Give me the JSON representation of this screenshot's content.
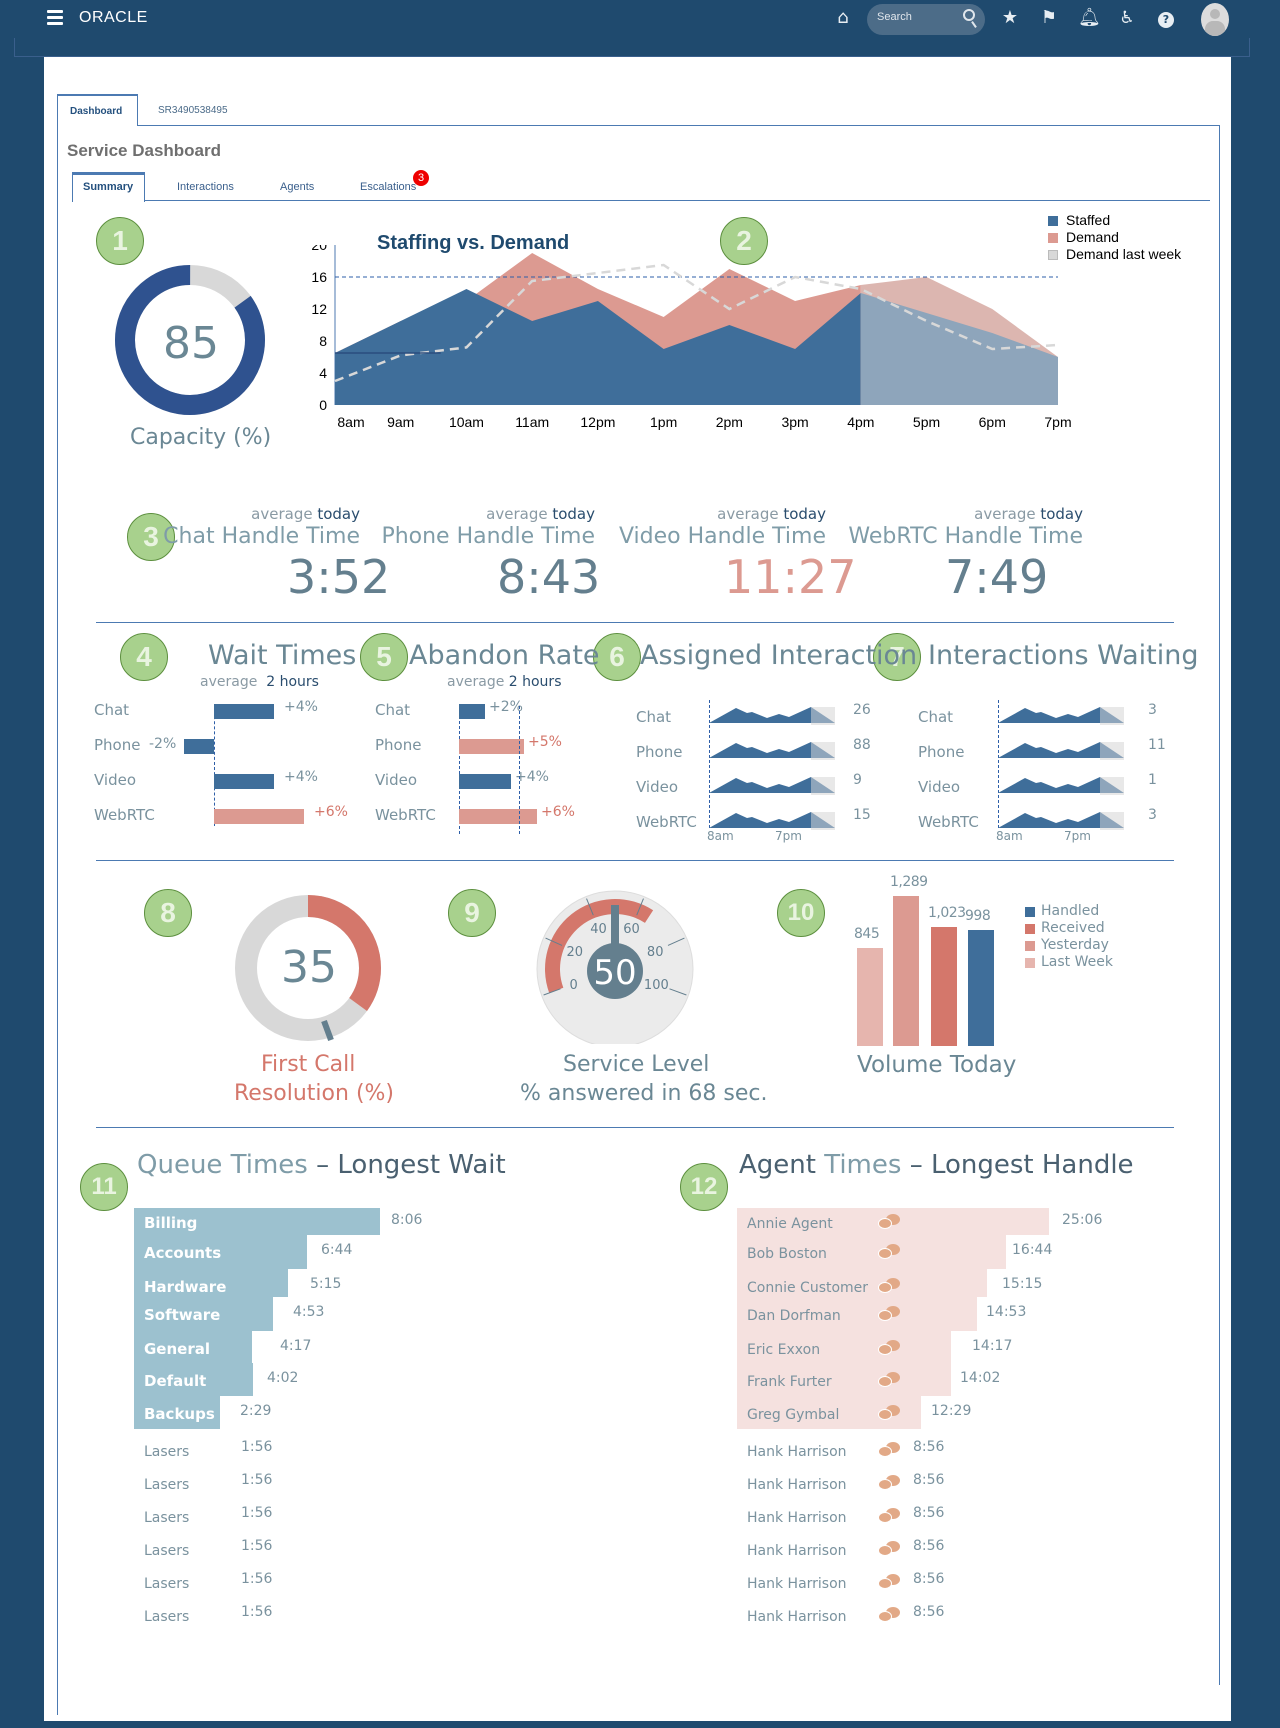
{
  "app": {
    "brand": "ORACLE",
    "search_placeholder": "Search"
  },
  "header_icons": [
    "menu-icon",
    "home-icon",
    "search-icon",
    "star-icon",
    "flag-icon",
    "bell-icon",
    "accessibility-icon",
    "help-icon",
    "avatar"
  ],
  "tabs": [
    {
      "label": "Dashboard",
      "active": true
    },
    {
      "label": "SR3490538495",
      "active": false
    }
  ],
  "page_title": "Service Dashboard",
  "subtabs": [
    {
      "label": "Summary",
      "active": true
    },
    {
      "label": "Interactions"
    },
    {
      "label": "Agents"
    },
    {
      "label": "Escalations",
      "badge": "3"
    }
  ],
  "markers": [
    "1",
    "2",
    "3",
    "4",
    "5",
    "6",
    "7",
    "8",
    "9",
    "10",
    "11",
    "12"
  ],
  "capacity": {
    "value": "85",
    "percent": 85,
    "label": "Capacity (%)"
  },
  "staffing_chart": {
    "title": "Staffing vs. Demand",
    "legend": [
      "Staffed",
      "Demand",
      "Demand last week"
    ],
    "y_ticks": [
      "20",
      "16",
      "12",
      "8",
      "4",
      "0"
    ],
    "x_ticks": [
      "8am",
      "9am",
      "10am",
      "11am",
      "12pm",
      "1pm",
      "2pm",
      "3pm",
      "4pm",
      "5pm",
      "6pm",
      "7pm"
    ]
  },
  "chart_data": {
    "type": "area",
    "title": "Staffing vs. Demand",
    "xlabel": "",
    "ylabel": "",
    "ylim": [
      0,
      20
    ],
    "x": [
      "8am",
      "9am",
      "10am",
      "11am",
      "12pm",
      "1pm",
      "2pm",
      "3pm",
      "4pm",
      "5pm",
      "6pm",
      "7pm"
    ],
    "threshold": 16,
    "forecast_from": "4pm",
    "series": [
      {
        "name": "Staffed",
        "values": [
          6.5,
          10.5,
          14.5,
          10.5,
          13,
          7,
          10,
          7,
          14,
          11.5,
          9,
          6
        ],
        "color": "#3f6e9a"
      },
      {
        "name": "Demand",
        "values": [
          6.5,
          10.5,
          13,
          19,
          14.5,
          11,
          17,
          13,
          15,
          16,
          12,
          6
        ],
        "color": "#dc9a91"
      },
      {
        "name": "Demand last week",
        "values": [
          3,
          6.2,
          7.2,
          15.5,
          16.5,
          17.5,
          12,
          16,
          14.5,
          10.5,
          7,
          7.5
        ],
        "color": "#d8d8d8"
      }
    ]
  },
  "handle_times": [
    {
      "caption": "average",
      "period": "today",
      "label": "Chat Handle Time",
      "value": "3:52",
      "alert": false
    },
    {
      "caption": "average",
      "period": "today",
      "label": "Phone Handle Time",
      "value": "8:43",
      "alert": false
    },
    {
      "caption": "average",
      "period": "today",
      "label": "Video Handle Time",
      "value": "11:27",
      "alert": true
    },
    {
      "caption": "average",
      "period": "today",
      "label": "WebRTC Handle Time",
      "value": "7:49",
      "alert": false
    }
  ],
  "wait_times": {
    "title": "Wait Times",
    "caption": "average",
    "period": "2 hours",
    "rows": [
      {
        "label": "Chat",
        "change": "+4%",
        "value": 4
      },
      {
        "label": "Phone",
        "change": "-2%",
        "value": -2
      },
      {
        "label": "Video",
        "change": "+4%",
        "value": 4
      },
      {
        "label": "WebRTC",
        "change": "+6%",
        "value": 6
      }
    ]
  },
  "abandon_rate": {
    "title": "Abandon Rate",
    "caption": "average",
    "period": "2 hours",
    "rows": [
      {
        "label": "Chat",
        "change": "+2%",
        "value": 2
      },
      {
        "label": "Phone",
        "change": "+5%",
        "value": 5
      },
      {
        "label": "Video",
        "change": "+4%",
        "value": 4
      },
      {
        "label": "WebRTC",
        "change": "+6%",
        "value": 6
      }
    ]
  },
  "assigned": {
    "title": "Assigned Interaction",
    "rows": [
      {
        "label": "Chat",
        "count": "26"
      },
      {
        "label": "Phone",
        "count": "88"
      },
      {
        "label": "Video",
        "count": "9"
      },
      {
        "label": "WebRTC",
        "count": "15"
      }
    ],
    "axis": [
      "8am",
      "7pm"
    ]
  },
  "waiting": {
    "title": "Interactions Waiting",
    "rows": [
      {
        "label": "Chat",
        "count": "3"
      },
      {
        "label": "Phone",
        "count": "11"
      },
      {
        "label": "Video",
        "count": "1"
      },
      {
        "label": "WebRTC",
        "count": "3"
      }
    ],
    "axis": [
      "8am",
      "7pm"
    ]
  },
  "fcr": {
    "value": "35",
    "percent": 35,
    "label_line1": "First Call",
    "label_line2": "Resolution (%)"
  },
  "service_level": {
    "value": "50",
    "ticks": [
      "0",
      "20",
      "40",
      "60",
      "80",
      "100"
    ],
    "label_line1": "Service Level",
    "label_line2": "% answered in 68 sec."
  },
  "volume": {
    "title": "Volume Today",
    "bars": [
      {
        "name": "Last Week",
        "value": 845,
        "label": "845",
        "color": "#e6b5ae"
      },
      {
        "name": "Yesterday",
        "value": 1289,
        "label": "1,289",
        "color": "#dc9a91"
      },
      {
        "name": "Received",
        "value": 1023,
        "label": "1,023",
        "color": "#d4776b"
      },
      {
        "name": "Handled",
        "value": 998,
        "label": "998",
        "color": "#3f6e9a"
      }
    ],
    "legend": [
      {
        "name": "Handled",
        "color": "#3f6e9a"
      },
      {
        "name": "Received",
        "color": "#d4776b"
      },
      {
        "name": "Yesterday",
        "color": "#dc9a91"
      },
      {
        "name": "Last Week",
        "color": "#e6b5ae"
      }
    ]
  },
  "queue_times": {
    "title_a": "Queue Times",
    "title_b": "– Longest Wait",
    "rows": [
      {
        "name": "Billing",
        "time": "8:06",
        "minutes": 8.1
      },
      {
        "name": "Accounts",
        "time": "6:44",
        "minutes": 6.73
      },
      {
        "name": "Hardware",
        "time": "5:15",
        "minutes": 5.25
      },
      {
        "name": "Software",
        "time": "4:53",
        "minutes": 4.88
      },
      {
        "name": "General",
        "time": "4:17",
        "minutes": 4.28
      },
      {
        "name": "Default",
        "time": "4:02",
        "minutes": 4.03
      },
      {
        "name": "Backups",
        "time": "2:29",
        "minutes": 2.48
      },
      {
        "name": "Lasers",
        "time": "1:56"
      },
      {
        "name": "Lasers",
        "time": "1:56"
      },
      {
        "name": "Lasers",
        "time": "1:56"
      },
      {
        "name": "Lasers",
        "time": "1:56"
      },
      {
        "name": "Lasers",
        "time": "1:56"
      },
      {
        "name": "Lasers",
        "time": "1:56"
      }
    ]
  },
  "agent_times": {
    "title_a": "Agent",
    "title_b": "Times",
    "title_c": "– Longest Handle",
    "rows": [
      {
        "name": "Annie Agent",
        "time": "25:06",
        "minutes": 25.1
      },
      {
        "name": "Bob Boston",
        "time": "16:44",
        "minutes": 16.73
      },
      {
        "name": "Connie Customer",
        "time": "15:15",
        "minutes": 15.25
      },
      {
        "name": "Dan Dorfman",
        "time": "14:53",
        "minutes": 14.88
      },
      {
        "name": "Eric Exxon",
        "time": "14:17",
        "minutes": 14.28
      },
      {
        "name": "Frank Furter",
        "time": "14:02",
        "minutes": 14.03
      },
      {
        "name": "Greg Gymbal",
        "time": "12:29",
        "minutes": 12.48
      },
      {
        "name": "Hank Harrison",
        "time": "8:56"
      },
      {
        "name": "Hank Harrison",
        "time": "8:56"
      },
      {
        "name": "Hank Harrison",
        "time": "8:56"
      },
      {
        "name": "Hank Harrison",
        "time": "8:56"
      },
      {
        "name": "Hank Harrison",
        "time": "8:56"
      },
      {
        "name": "Hank Harrison",
        "time": "8:56"
      }
    ]
  }
}
